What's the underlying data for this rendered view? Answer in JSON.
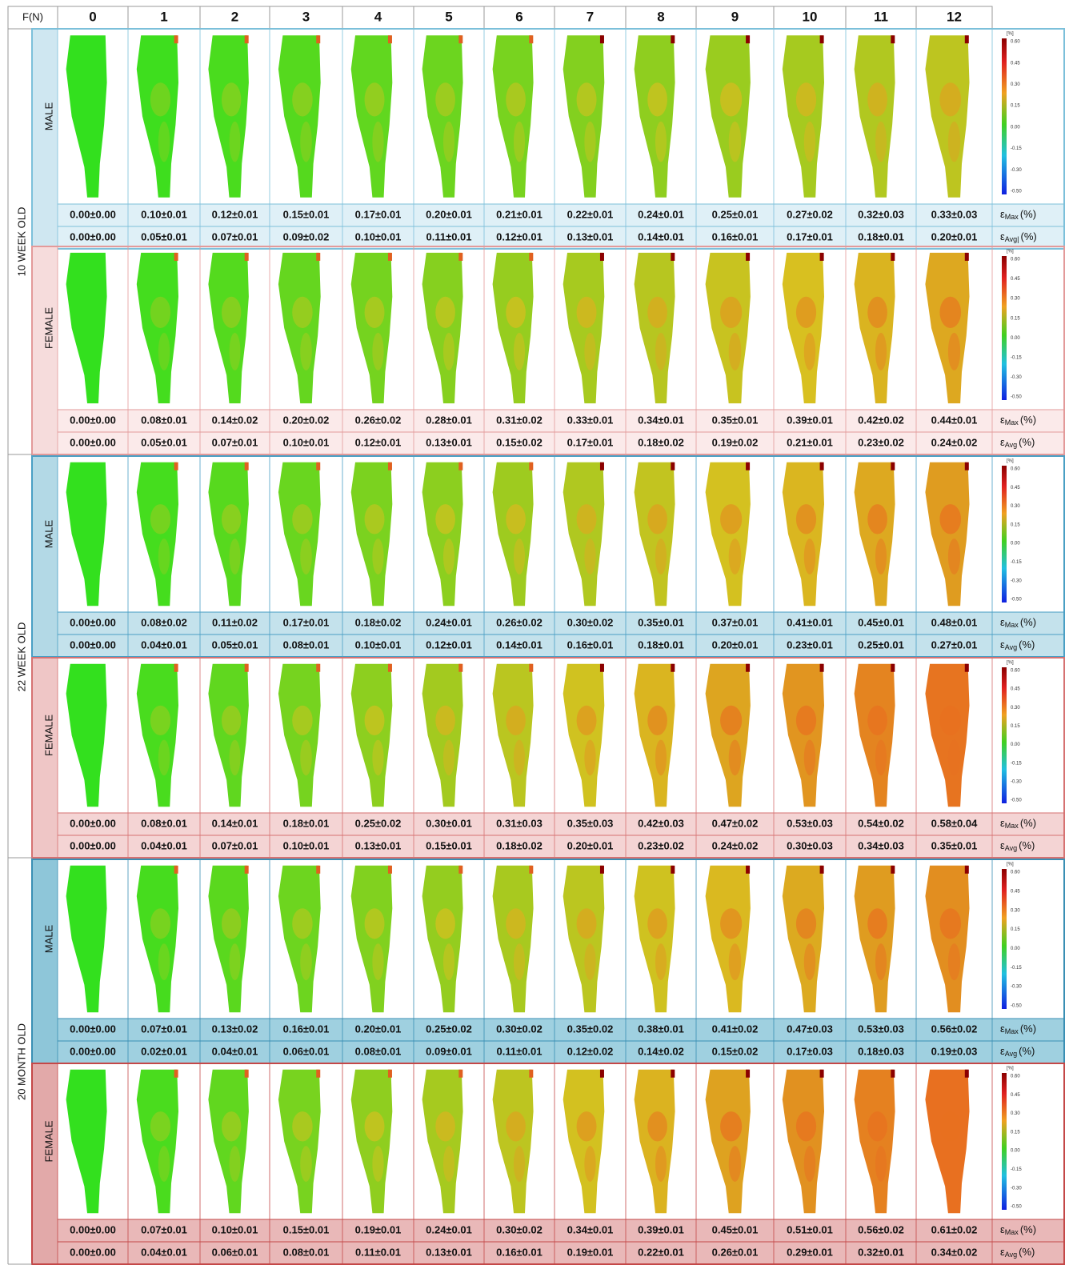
{
  "header": {
    "corner": "F(N)",
    "forces": [
      "0",
      "1",
      "2",
      "3",
      "4",
      "5",
      "6",
      "7",
      "8",
      "9",
      "10",
      "11",
      "12"
    ]
  },
  "colorbar": {
    "unit": "[%]",
    "ticks": [
      "0.60",
      "0.45",
      "0.30",
      "0.15",
      "0.00",
      "-0.15",
      "-0.30",
      "-0.50"
    ]
  },
  "groups": [
    {
      "age": "10 WEEK OLD",
      "rows": [
        {
          "sex": "MALE",
          "max": {
            "symbol": "ε",
            "sub": "Max",
            "unit": "(%)",
            "values": [
              "0.00±0.00",
              "0.10±0.01",
              "0.12±0.01",
              "0.15±0.01",
              "0.17±0.01",
              "0.20±0.01",
              "0.21±0.01",
              "0.22±0.01",
              "0.24±0.01",
              "0.25±0.01",
              "0.27±0.02",
              "0.32±0.03",
              "0.33±0.03"
            ]
          },
          "avg": {
            "symbol": "ε",
            "sub": "Avg|",
            "unit": "(%)",
            "values": [
              "0.00±0.00",
              "0.05±0.01",
              "0.07±0.01",
              "0.09±0.02",
              "0.10±0.01",
              "0.11±0.01",
              "0.12±0.01",
              "0.13±0.01",
              "0.14±0.01",
              "0.16±0.01",
              "0.17±0.01",
              "0.18±0.01",
              "0.20±0.01"
            ]
          }
        },
        {
          "sex": "FEMALE",
          "max": {
            "symbol": "ε",
            "sub": "Max",
            "unit": "(%)",
            "values": [
              "0.00±0.00",
              "0.08±0.01",
              "0.14±0.02",
              "0.20±0.02",
              "0.26±0.02",
              "0.28±0.01",
              "0.31±0.02",
              "0.33±0.01",
              "0.34±0.01",
              "0.35±0.01",
              "0.39±0.01",
              "0.42±0.02",
              "0.44±0.01"
            ]
          },
          "avg": {
            "symbol": "ε",
            "sub": "Avg",
            "unit": "(%)",
            "values": [
              "0.00±0.00",
              "0.05±0.01",
              "0.07±0.01",
              "0.10±0.01",
              "0.12±0.01",
              "0.13±0.01",
              "0.15±0.02",
              "0.17±0.01",
              "0.18±0.02",
              "0.19±0.02",
              "0.21±0.01",
              "0.23±0.02",
              "0.24±0.02"
            ]
          }
        }
      ]
    },
    {
      "age": "22 WEEK OLD",
      "rows": [
        {
          "sex": "MALE",
          "max": {
            "symbol": "ε",
            "sub": "Max",
            "unit": "(%)",
            "values": [
              "0.00±0.00",
              "0.08±0.02",
              "0.11±0.02",
              "0.17±0.01",
              "0.18±0.02",
              "0.24±0.01",
              "0.26±0.02",
              "0.30±0.02",
              "0.35±0.01",
              "0.37±0.01",
              "0.41±0.01",
              "0.45±0.01",
              "0.48±0.01"
            ]
          },
          "avg": {
            "symbol": "ε",
            "sub": "Avg",
            "unit": "(%)",
            "values": [
              "0.00±0.00",
              "0.04±0.01",
              "0.05±0.01",
              "0.08±0.01",
              "0.10±0.01",
              "0.12±0.01",
              "0.14±0.01",
              "0.16±0.01",
              "0.18±0.01",
              "0.20±0.01",
              "0.23±0.01",
              "0.25±0.01",
              "0.27±0.01"
            ]
          }
        },
        {
          "sex": "FEMALE",
          "max": {
            "symbol": "ε",
            "sub": "Max",
            "unit": "(%)",
            "values": [
              "0.00±0.00",
              "0.08±0.01",
              "0.14±0.01",
              "0.18±0.01",
              "0.25±0.02",
              "0.30±0.01",
              "0.31±0.03",
              "0.35±0.03",
              "0.42±0.03",
              "0.47±0.02",
              "0.53±0.03",
              "0.54±0.02",
              "0.58±0.04"
            ]
          },
          "avg": {
            "symbol": "ε",
            "sub": "Avg",
            "unit": "(%)",
            "values": [
              "0.00±0.00",
              "0.04±0.01",
              "0.07±0.01",
              "0.10±0.01",
              "0.13±0.01",
              "0.15±0.01",
              "0.18±0.02",
              "0.20±0.01",
              "0.23±0.02",
              "0.24±0.02",
              "0.30±0.03",
              "0.34±0.03",
              "0.35±0.01"
            ]
          }
        }
      ]
    },
    {
      "age": "20 MONTH OLD",
      "rows": [
        {
          "sex": "MALE",
          "max": {
            "symbol": "ε",
            "sub": "Max",
            "unit": "(%)",
            "values": [
              "0.00±0.00",
              "0.07±0.01",
              "0.13±0.02",
              "0.16±0.01",
              "0.20±0.01",
              "0.25±0.02",
              "0.30±0.02",
              "0.35±0.02",
              "0.38±0.01",
              "0.41±0.02",
              "0.47±0.03",
              "0.53±0.03",
              "0.56±0.02"
            ]
          },
          "avg": {
            "symbol": "ε",
            "sub": "Avg",
            "unit": "(%)",
            "values": [
              "0.00±0.00",
              "0.02±0.01",
              "0.04±0.01",
              "0.06±0.01",
              "0.08±0.01",
              "0.09±0.01",
              "0.11±0.01",
              "0.12±0.02",
              "0.14±0.02",
              "0.15±0.02",
              "0.17±0.03",
              "0.18±0.03",
              "0.19±0.03"
            ]
          }
        },
        {
          "sex": "FEMALE",
          "max": {
            "symbol": "ε",
            "sub": "Max",
            "unit": "(%)",
            "values": [
              "0.00±0.00",
              "0.07±0.01",
              "0.10±0.01",
              "0.15±0.01",
              "0.19±0.01",
              "0.24±0.01",
              "0.30±0.02",
              "0.34±0.01",
              "0.39±0.01",
              "0.45±0.01",
              "0.51±0.01",
              "0.56±0.02",
              "0.61±0.02"
            ]
          },
          "avg": {
            "symbol": "ε",
            "sub": "Avg",
            "unit": "(%)",
            "values": [
              "0.00±0.00",
              "0.04±0.01",
              "0.06±0.01",
              "0.08±0.01",
              "0.11±0.01",
              "0.13±0.01",
              "0.16±0.01",
              "0.19±0.01",
              "0.22±0.01",
              "0.26±0.01",
              "0.29±0.01",
              "0.32±0.01",
              "0.34±0.02"
            ]
          }
        }
      ]
    }
  ]
}
